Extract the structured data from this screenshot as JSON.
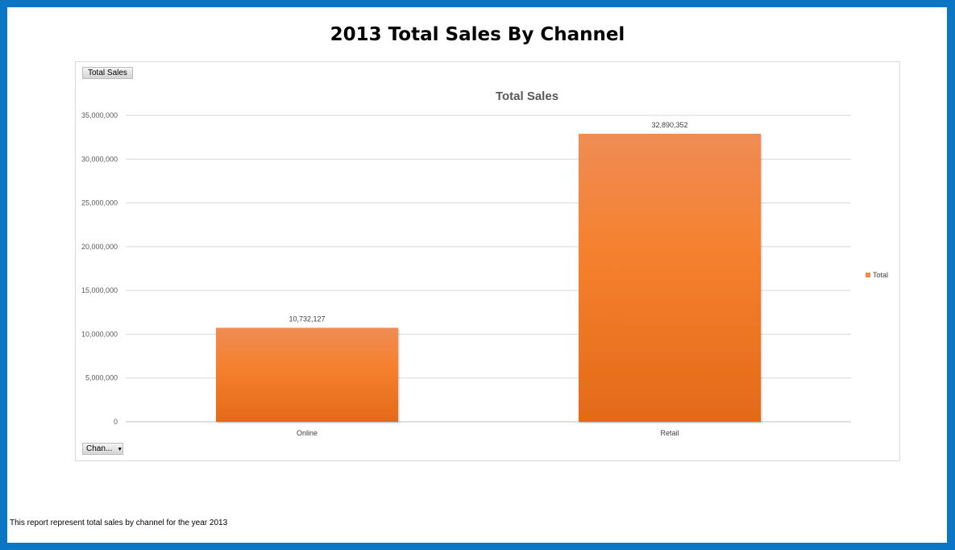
{
  "page": {
    "title": "2013 Total Sales By Channel",
    "footer": "This report represent total sales by channel for the year 2013",
    "border_color": "#0b76c5"
  },
  "pivot": {
    "values_button": "Total Sales",
    "axis_button": "Chan...",
    "axis_button_icon": "dropdown-arrow-icon"
  },
  "chart_data": {
    "type": "bar",
    "title": "Total Sales",
    "categories": [
      "Online",
      "Retail"
    ],
    "series": [
      {
        "name": "Total",
        "values": [
          10732127,
          32890352
        ],
        "color": "#f08c4b"
      }
    ],
    "data_labels": [
      "10,732,127",
      "32,890,352"
    ],
    "ylim": [
      0,
      35000000
    ],
    "yticks": [
      0,
      5000000,
      10000000,
      15000000,
      20000000,
      25000000,
      30000000,
      35000000
    ],
    "ytick_labels": [
      "0",
      "5,000,000",
      "10,000,000",
      "15,000,000",
      "20,000,000",
      "25,000,000",
      "30,000,000",
      "35,000,000"
    ],
    "xlabel": "",
    "ylabel": "",
    "grid": true,
    "legend_position": "right"
  }
}
